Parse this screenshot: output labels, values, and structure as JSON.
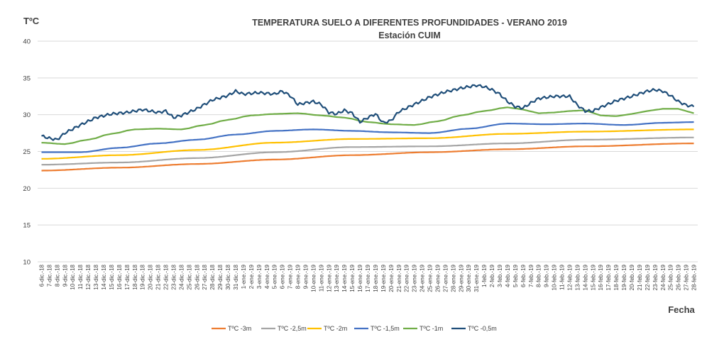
{
  "chart_data": {
    "type": "line",
    "title": "TEMPERATURA SUELO A DIFERENTES PROFUNDIDADES -  VERANO 2019",
    "subtitle": "Estación CUIM",
    "ylabel": "TºC",
    "xlabel": "Fecha",
    "ylim": [
      10,
      40
    ],
    "yticks": [
      10,
      15,
      20,
      25,
      30,
      35,
      40
    ],
    "grid": true,
    "legend_position": "bottom",
    "categories": [
      "6-dic.-18",
      "7-dic.-18",
      "8-dic.-18",
      "9-dic.-18",
      "10-dic.-18",
      "11-dic.-18",
      "12-dic.-18",
      "13-dic.-18",
      "14-dic.-18",
      "15-dic.-18",
      "16-dic.-18",
      "17-dic.-18",
      "18-dic.-18",
      "19-dic.-18",
      "20-dic.-18",
      "21-dic.-18",
      "22-dic.-18",
      "23-dic.-18",
      "24-dic.-18",
      "25-dic.-18",
      "26-dic.-18",
      "27-dic.-18",
      "28-dic.-18",
      "29-dic.-18",
      "30-dic.-18",
      "31-dic.-18",
      "1-ene.-19",
      "2-ene.-19",
      "3-ene.-19",
      "4-ene.-19",
      "5-ene.-19",
      "6-ene.-19",
      "7-ene.-19",
      "8-ene.-19",
      "9-ene.-19",
      "10-ene.-19",
      "11-ene.-19",
      "12-ene.-19",
      "13-ene.-19",
      "14-ene.-19",
      "15-ene.-19",
      "16-ene.-19",
      "17-ene.-19",
      "18-ene.-19",
      "19-ene.-19",
      "20-ene.-19",
      "21-ene.-19",
      "22-ene.-19",
      "23-ene.-19",
      "24-ene.-19",
      "25-ene.-19",
      "26-ene.-19",
      "27-ene.-19",
      "28-ene.-19",
      "29-ene.-19",
      "30-ene.-19",
      "31-ene.-19",
      "1-feb.-19",
      "2-feb.-19",
      "3-feb.-19",
      "4-feb.-19",
      "5-feb.-19",
      "6-feb.-19",
      "7-feb.-19",
      "8-feb.-19",
      "9-feb.-19",
      "10-feb.-19",
      "11-feb.-19",
      "12-feb.-19",
      "13-feb.-19",
      "14-feb.-19",
      "15-feb.-19",
      "16-feb.-19",
      "17-feb.-19",
      "18-feb.-19",
      "19-feb.-19",
      "20-feb.-19",
      "21-feb.-19",
      "22-feb.-19",
      "23-feb.-19",
      "24-feb.-19",
      "25-feb.-19",
      "26-feb.-19",
      "27-feb.-19",
      "28-feb.-19"
    ],
    "series": [
      {
        "name": "TºC -3m",
        "color": "#ED7D31",
        "knots": [
          [
            0,
            22.4
          ],
          [
            10,
            22.8
          ],
          [
            20,
            23.3
          ],
          [
            30,
            23.9
          ],
          [
            40,
            24.5
          ],
          [
            50,
            24.9
          ],
          [
            60,
            25.3
          ],
          [
            70,
            25.7
          ],
          [
            84,
            26.1
          ]
        ]
      },
      {
        "name": "TºC -2,5m",
        "color": "#A5A5A5",
        "knots": [
          [
            0,
            23.2
          ],
          [
            10,
            23.5
          ],
          [
            20,
            24.1
          ],
          [
            30,
            24.9
          ],
          [
            40,
            25.6
          ],
          [
            50,
            25.7
          ],
          [
            60,
            26.1
          ],
          [
            70,
            26.6
          ],
          [
            84,
            26.9
          ]
        ]
      },
      {
        "name": "TºC -2m",
        "color": "#FFC000",
        "knots": [
          [
            0,
            24.0
          ],
          [
            10,
            24.5
          ],
          [
            20,
            25.2
          ],
          [
            30,
            26.2
          ],
          [
            40,
            26.7
          ],
          [
            50,
            26.8
          ],
          [
            60,
            27.4
          ],
          [
            70,
            27.7
          ],
          [
            84,
            28.0
          ]
        ]
      },
      {
        "name": "TºC -1,5m",
        "color": "#4472C4",
        "knots": [
          [
            0,
            24.9
          ],
          [
            5,
            24.9
          ],
          [
            10,
            25.5
          ],
          [
            15,
            26.1
          ],
          [
            20,
            26.6
          ],
          [
            25,
            27.3
          ],
          [
            30,
            27.8
          ],
          [
            35,
            28.0
          ],
          [
            40,
            27.8
          ],
          [
            45,
            27.6
          ],
          [
            50,
            27.5
          ],
          [
            55,
            28.1
          ],
          [
            60,
            28.8
          ],
          [
            65,
            28.7
          ],
          [
            70,
            28.8
          ],
          [
            75,
            28.6
          ],
          [
            80,
            28.9
          ],
          [
            84,
            29.0
          ]
        ]
      },
      {
        "name": "TºC -1m",
        "color": "#70AD47",
        "knots": [
          [
            0,
            26.2
          ],
          [
            3,
            26.0
          ],
          [
            6,
            26.6
          ],
          [
            9,
            27.4
          ],
          [
            12,
            28.0
          ],
          [
            15,
            28.1
          ],
          [
            18,
            28.0
          ],
          [
            21,
            28.6
          ],
          [
            24,
            29.3
          ],
          [
            27,
            29.9
          ],
          [
            30,
            30.1
          ],
          [
            33,
            30.2
          ],
          [
            36,
            29.9
          ],
          [
            39,
            29.6
          ],
          [
            42,
            29.0
          ],
          [
            45,
            28.7
          ],
          [
            48,
            28.6
          ],
          [
            51,
            29.1
          ],
          [
            54,
            29.9
          ],
          [
            57,
            30.5
          ],
          [
            60,
            31.0
          ],
          [
            62,
            30.7
          ],
          [
            64,
            30.2
          ],
          [
            66,
            30.3
          ],
          [
            68,
            30.5
          ],
          [
            70,
            30.6
          ],
          [
            72,
            29.9
          ],
          [
            74,
            29.8
          ],
          [
            76,
            30.1
          ],
          [
            78,
            30.5
          ],
          [
            80,
            30.8
          ],
          [
            82,
            30.8
          ],
          [
            84,
            30.2
          ]
        ]
      },
      {
        "name": "TºC -0,5m",
        "color": "#1F4E79",
        "knots": [
          [
            0,
            27.1
          ],
          [
            1,
            26.8
          ],
          [
            2,
            26.6
          ],
          [
            3,
            27.5
          ],
          [
            5,
            28.6
          ],
          [
            7,
            29.6
          ],
          [
            9,
            30.1
          ],
          [
            11,
            30.3
          ],
          [
            13,
            30.7
          ],
          [
            15,
            30.3
          ],
          [
            16,
            30.5
          ],
          [
            17,
            29.6
          ],
          [
            18,
            29.9
          ],
          [
            20,
            30.8
          ],
          [
            22,
            32.0
          ],
          [
            24,
            32.6
          ],
          [
            25,
            33.2
          ],
          [
            26,
            32.8
          ],
          [
            28,
            33.0
          ],
          [
            30,
            32.8
          ],
          [
            31,
            33.2
          ],
          [
            32,
            32.6
          ],
          [
            33,
            31.4
          ],
          [
            34,
            31.6
          ],
          [
            35,
            31.8
          ],
          [
            36,
            31.4
          ],
          [
            37,
            30.3
          ],
          [
            38,
            30.1
          ],
          [
            39,
            30.6
          ],
          [
            40,
            30.2
          ],
          [
            41,
            29.0
          ],
          [
            42,
            29.6
          ],
          [
            43,
            30.1
          ],
          [
            44,
            28.9
          ],
          [
            45,
            29.2
          ],
          [
            46,
            30.4
          ],
          [
            48,
            31.4
          ],
          [
            50,
            32.4
          ],
          [
            52,
            33.1
          ],
          [
            54,
            33.6
          ],
          [
            56,
            34.0
          ],
          [
            57,
            33.8
          ],
          [
            58,
            33.4
          ],
          [
            59,
            32.8
          ],
          [
            60,
            31.8
          ],
          [
            61,
            31.1
          ],
          [
            62,
            30.9
          ],
          [
            63,
            31.6
          ],
          [
            64,
            32.2
          ],
          [
            66,
            32.5
          ],
          [
            68,
            32.5
          ],
          [
            69,
            31.3
          ],
          [
            70,
            30.5
          ],
          [
            71,
            30.5
          ],
          [
            72,
            31.0
          ],
          [
            74,
            31.9
          ],
          [
            76,
            32.5
          ],
          [
            78,
            33.2
          ],
          [
            79,
            33.4
          ],
          [
            80,
            33.2
          ],
          [
            81,
            32.6
          ],
          [
            82,
            31.8
          ],
          [
            83,
            31.3
          ],
          [
            84,
            31.1
          ]
        ]
      }
    ]
  }
}
